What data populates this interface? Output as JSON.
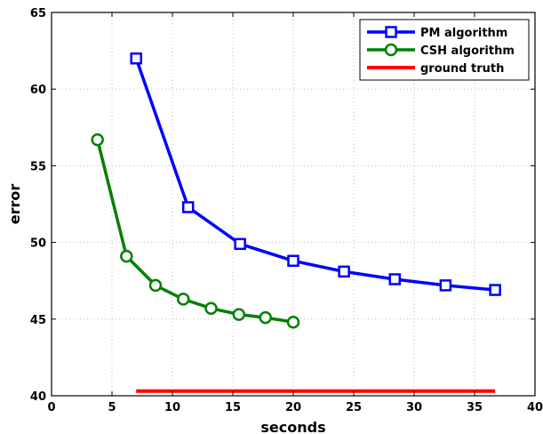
{
  "chart_data": {
    "type": "line",
    "title": "",
    "xlabel": "seconds",
    "ylabel": "error",
    "xlim": [
      0,
      40
    ],
    "ylim": [
      40,
      65
    ],
    "xticks": [
      0,
      5,
      10,
      15,
      20,
      25,
      30,
      35,
      40
    ],
    "yticks": [
      40,
      45,
      50,
      55,
      60,
      65
    ],
    "grid": true,
    "legend_position": "top-right",
    "series": [
      {
        "name": "PM algorithm",
        "color": "#0000ff",
        "marker": "square",
        "x": [
          7.0,
          11.3,
          15.6,
          20.0,
          24.2,
          28.4,
          32.6,
          36.7
        ],
        "y": [
          62.0,
          52.3,
          49.9,
          48.8,
          48.1,
          47.6,
          47.2,
          46.9
        ]
      },
      {
        "name": "CSH algorithm",
        "color": "#008000",
        "marker": "circle",
        "x": [
          3.8,
          6.2,
          8.6,
          10.9,
          13.2,
          15.5,
          17.7,
          20.0
        ],
        "y": [
          56.7,
          49.1,
          47.2,
          46.3,
          45.7,
          45.3,
          45.1,
          44.8
        ]
      },
      {
        "name": "ground truth",
        "color": "#ff0000",
        "marker": "none",
        "x": [
          7.0,
          36.7
        ],
        "y": [
          40.3,
          40.3
        ]
      }
    ]
  }
}
